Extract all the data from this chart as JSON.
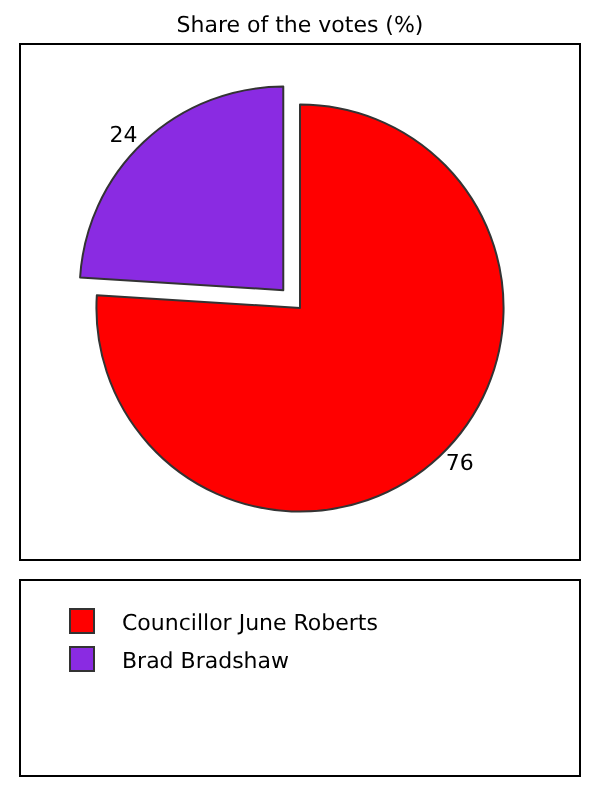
{
  "chart_data": {
    "type": "pie",
    "title": "Share of the votes (%)",
    "categories": [
      "Councillor June Roberts",
      "Brad Bradshaw"
    ],
    "values": [
      76,
      24
    ],
    "colors": [
      "#ff0000",
      "#8a2be2"
    ],
    "data_labels": true,
    "legend": "bottom"
  }
}
